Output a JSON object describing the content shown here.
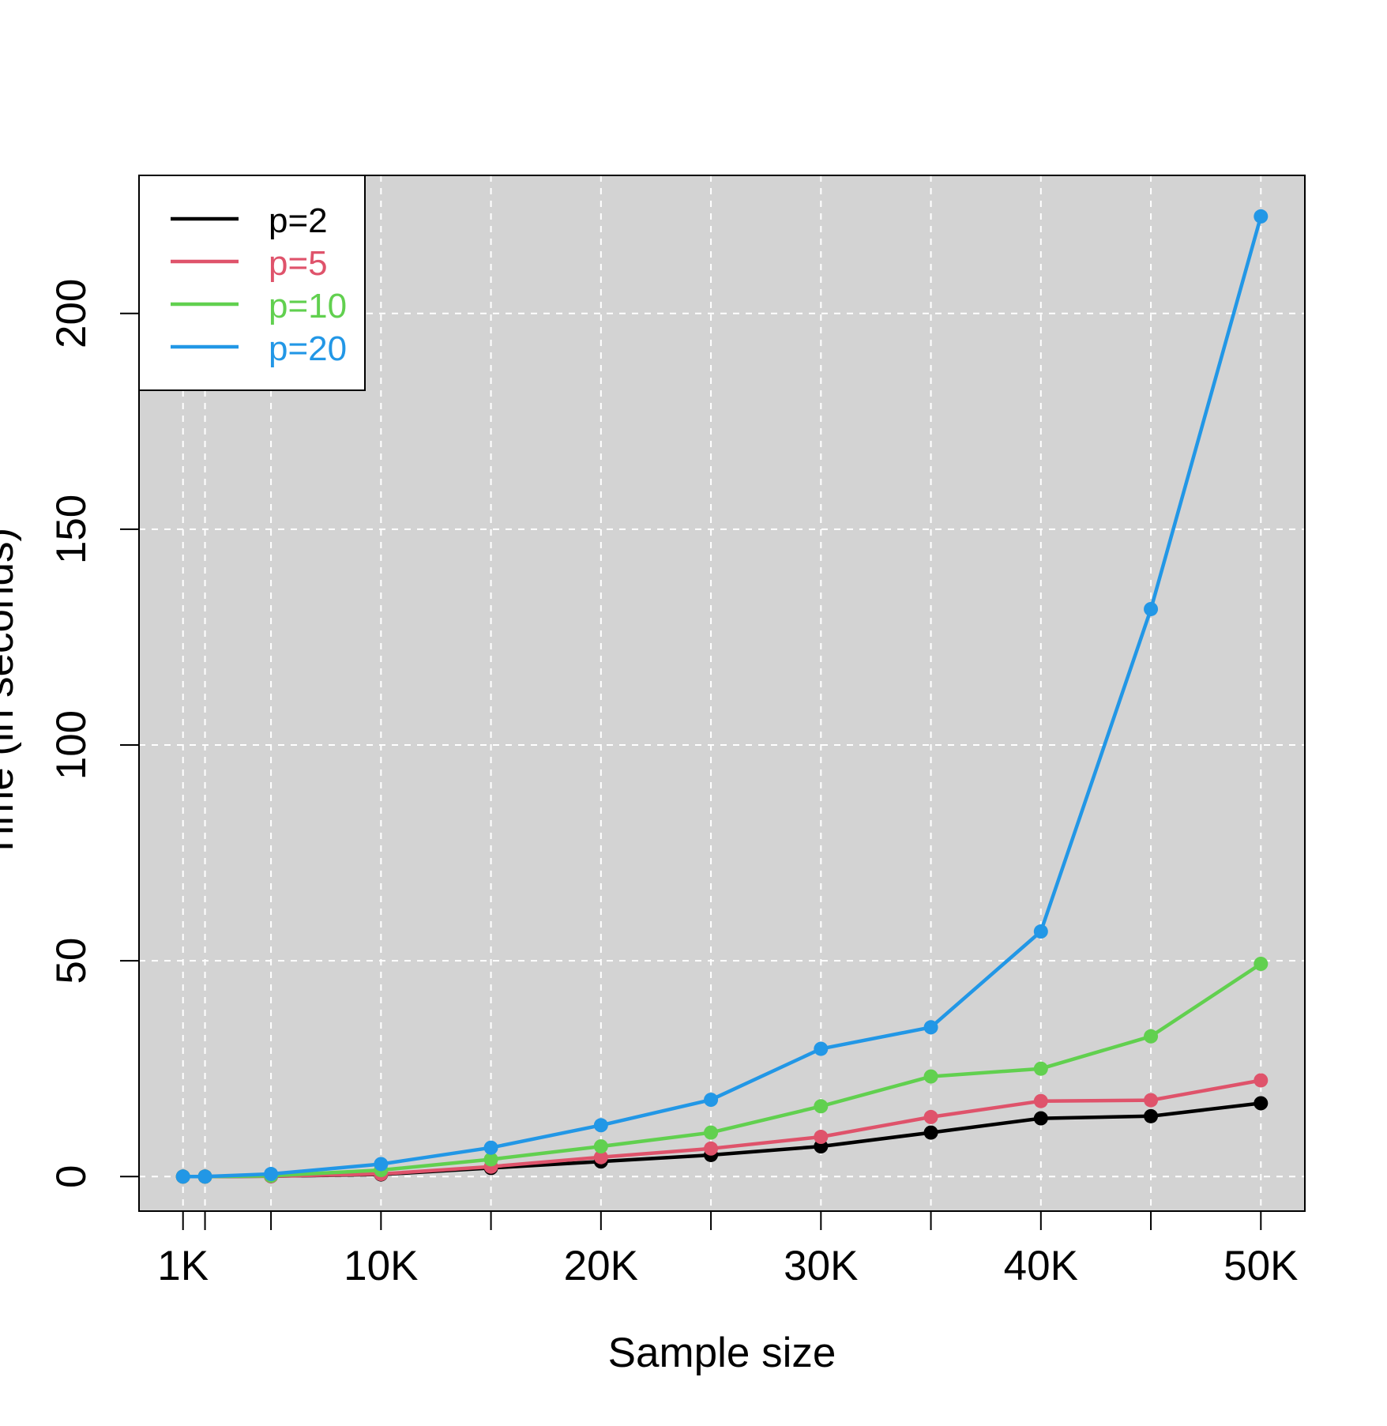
{
  "chart_data": {
    "type": "line",
    "title": "",
    "xlabel": "Sample size",
    "ylabel": "Time (in seconds)",
    "x": [
      1000,
      2000,
      5000,
      10000,
      15000,
      20000,
      25000,
      30000,
      35000,
      40000,
      45000,
      50000
    ],
    "xlim": [
      -1000,
      52000
    ],
    "ylim": [
      -8,
      232
    ],
    "x_ticks": [
      {
        "value": 1000,
        "label": "1K"
      },
      {
        "value": 2000,
        "label": ""
      },
      {
        "value": 5000,
        "label": ""
      },
      {
        "value": 10000,
        "label": "10K"
      },
      {
        "value": 15000,
        "label": ""
      },
      {
        "value": 20000,
        "label": "20K"
      },
      {
        "value": 25000,
        "label": ""
      },
      {
        "value": 30000,
        "label": "30K"
      },
      {
        "value": 35000,
        "label": ""
      },
      {
        "value": 40000,
        "label": "40K"
      },
      {
        "value": 45000,
        "label": ""
      },
      {
        "value": 50000,
        "label": "50K"
      }
    ],
    "y_ticks": [
      {
        "value": 0,
        "label": "0"
      },
      {
        "value": 50,
        "label": "50"
      },
      {
        "value": 100,
        "label": "100"
      },
      {
        "value": 150,
        "label": "150"
      },
      {
        "value": 200,
        "label": "200"
      }
    ],
    "grid": true,
    "grid_style": "dashed",
    "plot_background": "#D3D3D3",
    "legend_position": "top-left",
    "series": [
      {
        "name": "p=2",
        "color": "#000000",
        "values": [
          0.0,
          0.0,
          0.1,
          0.5,
          2.0,
          3.5,
          5.0,
          7.0,
          10.2,
          13.5,
          14.0,
          17.0
        ]
      },
      {
        "name": "p=5",
        "color": "#DF536B",
        "values": [
          0.0,
          0.0,
          0.1,
          0.6,
          2.3,
          4.5,
          6.5,
          9.2,
          13.8,
          17.5,
          17.7,
          22.3
        ]
      },
      {
        "name": "p=10",
        "color": "#61D04F",
        "values": [
          0.0,
          0.0,
          0.2,
          1.5,
          4.0,
          7.0,
          10.2,
          16.3,
          23.2,
          25.0,
          32.5,
          49.3
        ]
      },
      {
        "name": "p=20",
        "color": "#2297E6",
        "values": [
          0.0,
          0.0,
          0.6,
          2.9,
          6.7,
          11.9,
          17.8,
          29.6,
          34.6,
          56.8,
          131.5,
          222.5
        ]
      }
    ]
  }
}
